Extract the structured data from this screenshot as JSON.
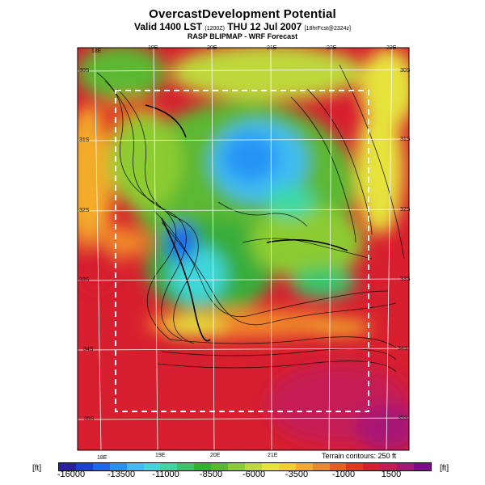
{
  "header": {
    "title": "OvercastDevelopment Potential",
    "valid_prefix": "Valid 1400 LST",
    "valid_small": "(1200Z)",
    "valid_main": "THU 12 Jul 2007",
    "valid_small2": "[18hrFcst@2324z]",
    "source": "RASP BLIPMAP - WRF Forecast"
  },
  "axes": {
    "lon_top": [
      "18E",
      "19E",
      "20E",
      "21E",
      "22E",
      "23E"
    ],
    "lon_bottom": [
      "18E",
      "19E",
      "20E",
      "21E"
    ],
    "lat_left": [
      "30S",
      "31S",
      "32S",
      "33S",
      "34S",
      "35S"
    ],
    "lat_right": [
      "30S",
      "31S",
      "32S",
      "33S",
      "34S",
      "35S"
    ]
  },
  "footer": {
    "terrain_note": "Terrain contours: 250 ft",
    "unit_left": "[ft]",
    "unit_right": "[ft]"
  },
  "colorbar": {
    "labels": [
      "-16000",
      "-13500",
      "-11000",
      "-8500",
      "-6000",
      "-3500",
      "-1000",
      "1500"
    ],
    "colors": [
      "#2a1f9e",
      "#1c3fd6",
      "#1f67ef",
      "#2594f5",
      "#3fbcf2",
      "#3fd7d9",
      "#3cd8a4",
      "#3bc46a",
      "#38ad3a",
      "#5bb830",
      "#8ccc32",
      "#bed83a",
      "#e6e33c",
      "#f2cf31",
      "#f3ac2c",
      "#f08729",
      "#ea5d27",
      "#e33425",
      "#d71f2f",
      "#c51a55",
      "#a81575",
      "#7a0e82"
    ]
  }
}
